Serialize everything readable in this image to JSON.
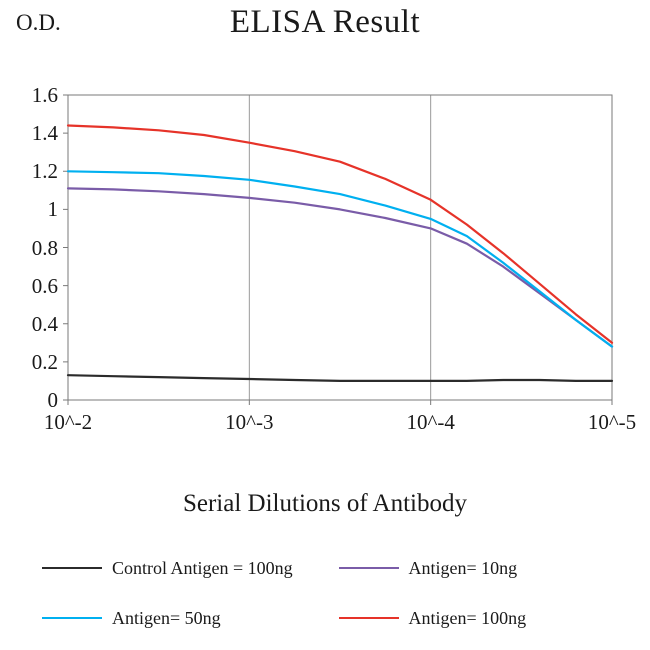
{
  "page": {
    "background": "#ffffff"
  },
  "chart_data": {
    "type": "line",
    "title": "ELISA Result",
    "ylabel": "O.D.",
    "xlabel": "Serial Dilutions of Antibody",
    "x_ticklabels": [
      "10^-2",
      "10^-3",
      "10^-4",
      "10^-5"
    ],
    "y_ticklabels": [
      "0",
      "0.2",
      "0.4",
      "0.6",
      "0.8",
      "1",
      "1.2",
      "1.4",
      "1.6"
    ],
    "ylim": [
      0,
      1.6
    ],
    "x_range": [
      0,
      3
    ],
    "grid": "vertical-gridlines-with-box-border",
    "grid_color": "#9a9a9a",
    "axis_color": "#7a7a7a",
    "legend_position": "bottom-2-columns",
    "series": [
      {
        "name": "Control Antigen = 100ng",
        "color": "#2b2b2b",
        "x": [
          0,
          0.25,
          0.5,
          0.75,
          1,
          1.25,
          1.5,
          1.75,
          2,
          2.2,
          2.4,
          2.6,
          2.8,
          3
        ],
        "y": [
          0.13,
          0.125,
          0.12,
          0.115,
          0.11,
          0.105,
          0.1,
          0.1,
          0.1,
          0.1,
          0.105,
          0.105,
          0.1,
          0.1
        ]
      },
      {
        "name": "Antigen= 10ng",
        "color": "#7a5ca8",
        "x": [
          0,
          0.25,
          0.5,
          0.75,
          1,
          1.25,
          1.5,
          1.75,
          2,
          2.2,
          2.4,
          2.6,
          2.8,
          3
        ],
        "y": [
          1.11,
          1.105,
          1.095,
          1.08,
          1.06,
          1.035,
          1.0,
          0.955,
          0.9,
          0.82,
          0.7,
          0.56,
          0.42,
          0.28
        ]
      },
      {
        "name": "Antigen= 50ng",
        "color": "#00b0f0",
        "x": [
          0,
          0.25,
          0.5,
          0.75,
          1,
          1.25,
          1.5,
          1.75,
          2,
          2.2,
          2.4,
          2.6,
          2.8,
          3
        ],
        "y": [
          1.2,
          1.195,
          1.19,
          1.175,
          1.155,
          1.12,
          1.08,
          1.02,
          0.95,
          0.86,
          0.72,
          0.57,
          0.42,
          0.28
        ]
      },
      {
        "name": "Antigen= 100ng",
        "color": "#e63329",
        "x": [
          0,
          0.25,
          0.5,
          0.75,
          1,
          1.25,
          1.5,
          1.75,
          2,
          2.2,
          2.4,
          2.6,
          2.8,
          3
        ],
        "y": [
          1.44,
          1.43,
          1.415,
          1.39,
          1.35,
          1.305,
          1.25,
          1.16,
          1.05,
          0.92,
          0.77,
          0.61,
          0.45,
          0.3
        ]
      }
    ]
  }
}
